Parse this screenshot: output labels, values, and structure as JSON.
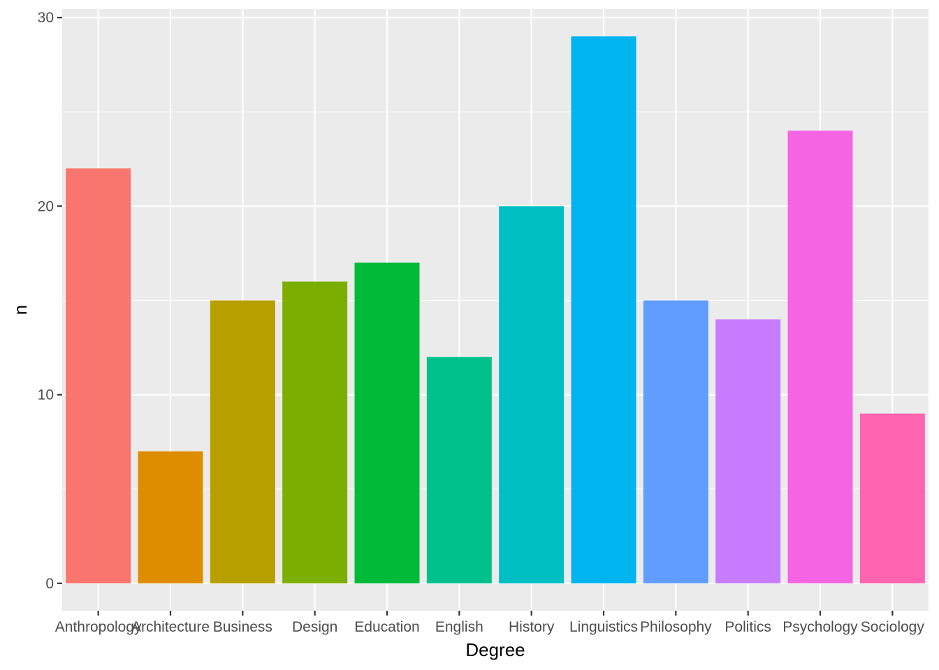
{
  "chart_data": {
    "type": "bar",
    "title": "",
    "xlabel": "Degree",
    "ylabel": "n",
    "categories": [
      "Anthropology",
      "Architecture",
      "Business",
      "Design",
      "Education",
      "English",
      "History",
      "Linguistics",
      "Philosophy",
      "Politics",
      "Psychology",
      "Sociology"
    ],
    "values": [
      22,
      7,
      15,
      16,
      17,
      12,
      20,
      29,
      15,
      14,
      24,
      9
    ],
    "colors": [
      "#F8766D",
      "#DE8C00",
      "#B79F00",
      "#7CAE00",
      "#00BA38",
      "#00C08B",
      "#00BFC4",
      "#00B4F0",
      "#619CFF",
      "#C77CFF",
      "#F564E3",
      "#FF64B0"
    ],
    "ylim": [
      -1.45,
      30.45
    ],
    "yticks": [
      0,
      10,
      20,
      30
    ],
    "ytick_labels": [
      "0",
      "10",
      "20",
      "30"
    ],
    "y_minor_gridlines": [
      5,
      15,
      25
    ],
    "grid": true,
    "panel_background": "#EBEBEB",
    "gridline_color": "#FFFFFF",
    "legend": "none"
  }
}
